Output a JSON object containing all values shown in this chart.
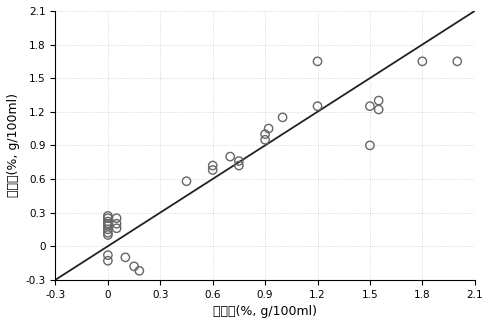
{
  "x_data": [
    0.0,
    0.0,
    0.0,
    0.0,
    0.0,
    0.0,
    0.0,
    0.0,
    0.0,
    0.05,
    0.05,
    0.05,
    0.1,
    0.15,
    0.18,
    0.0,
    0.0,
    0.45,
    0.6,
    0.6,
    0.7,
    0.75,
    0.75,
    0.9,
    0.9,
    0.92,
    1.0,
    1.2,
    1.2,
    1.5,
    1.5,
    1.55,
    1.55,
    1.8,
    2.0
  ],
  "y_data": [
    0.2,
    0.22,
    0.25,
    0.27,
    0.2,
    0.18,
    0.15,
    0.12,
    0.1,
    0.25,
    0.2,
    0.16,
    -0.1,
    -0.18,
    -0.22,
    -0.08,
    -0.13,
    0.58,
    0.68,
    0.72,
    0.8,
    0.76,
    0.72,
    1.0,
    0.95,
    1.05,
    1.15,
    1.25,
    1.65,
    0.9,
    1.25,
    1.3,
    1.22,
    1.65,
    1.65
  ],
  "line_x": [
    -0.3,
    2.1
  ],
  "line_y": [
    -0.3,
    2.1
  ],
  "xlim": [
    -0.3,
    2.1
  ],
  "ylim": [
    -0.3,
    2.1
  ],
  "xticks": [
    -0.3,
    0.0,
    0.3,
    0.6,
    0.9,
    1.2,
    1.5,
    1.8,
    2.1
  ],
  "yticks": [
    -0.3,
    0.0,
    0.3,
    0.6,
    0.9,
    1.2,
    1.5,
    1.8,
    2.1
  ],
  "xlabel": "真实値(%, g/100ml)",
  "ylabel": "预测値(%, g/100ml)",
  "marker_color": "none",
  "marker_edge_color": "#666666",
  "line_color": "#222222",
  "background_color": "#ffffff",
  "marker_size": 6,
  "marker_linewidth": 1.0,
  "line_width": 1.3
}
